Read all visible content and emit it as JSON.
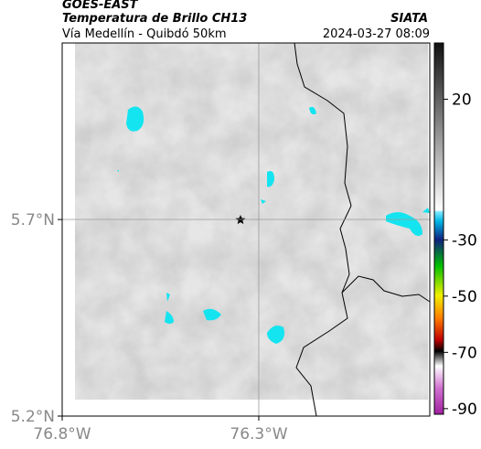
{
  "header": {
    "satellite": "GOES-EAST",
    "product": "Temperatura de Brillo CH13",
    "region": "Vía Medellín - Quibdó 50km",
    "source": "SIATA",
    "timestamp": "2024-03-27 08:09"
  },
  "map": {
    "xlim": [
      -76.8,
      -75.865
    ],
    "ylim": [
      5.2,
      6.149
    ],
    "xticks": [
      {
        "value": -76.8,
        "label": "76.8°W"
      },
      {
        "value": -76.3,
        "label": "76.3°W"
      }
    ],
    "yticks": [
      {
        "value": 5.7,
        "label": "5.7°N"
      },
      {
        "value": 5.2,
        "label": "5.2°N"
      }
    ],
    "grid": true
  },
  "colorbar": {
    "lim": [
      -92,
      40
    ],
    "ticks": [
      20,
      -30,
      -50,
      -70,
      -90
    ]
  }
}
